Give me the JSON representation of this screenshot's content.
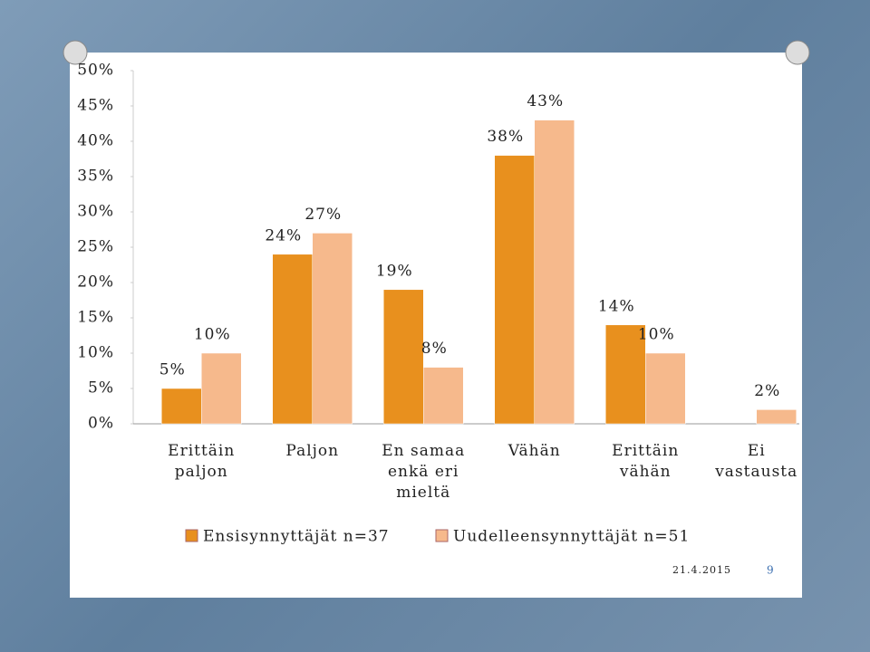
{
  "chart_data": {
    "type": "bar",
    "categories": [
      "Erittäin\npaljon",
      "Paljon",
      "En samaa\nenkä eri\nmieltä",
      "Vähän",
      "Erittäin\nvähän",
      "Ei\nvastausta"
    ],
    "series": [
      {
        "name": "Ensisynnyttäjät n=37",
        "color": "#e8901e",
        "values": [
          5,
          24,
          19,
          38,
          14,
          null
        ],
        "value_labels": [
          "5%",
          "24%",
          "19%",
          "38%",
          "14%",
          null
        ]
      },
      {
        "name": "Uudelleensynnyttäjät n=51",
        "color": "#f6b98c",
        "values": [
          10,
          27,
          8,
          43,
          10,
          2
        ],
        "value_labels": [
          "10%",
          "27%",
          "8%",
          "43%",
          "10%",
          "2%"
        ]
      }
    ],
    "ylim": [
      0,
      50
    ],
    "yticks": [
      {
        "value": 0,
        "label": "0%"
      },
      {
        "value": 5,
        "label": "5%"
      },
      {
        "value": 10,
        "label": "10%"
      },
      {
        "value": 15,
        "label": "15%"
      },
      {
        "value": 20,
        "label": "20%"
      },
      {
        "value": 25,
        "label": "25%"
      },
      {
        "value": 30,
        "label": "30%"
      },
      {
        "value": 35,
        "label": "35%"
      },
      {
        "value": 40,
        "label": "40%"
      },
      {
        "value": 45,
        "label": "45%"
      },
      {
        "value": 50,
        "label": "50%"
      }
    ],
    "grid": false,
    "legend": "bottom"
  },
  "footer": {
    "date": "21.4.2015",
    "page": "9"
  }
}
